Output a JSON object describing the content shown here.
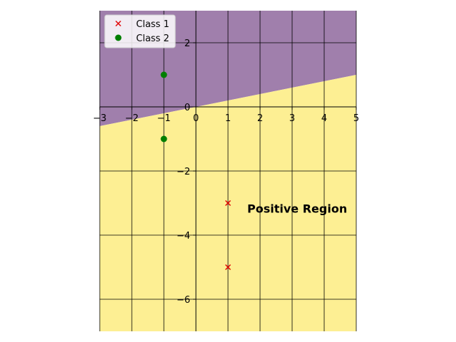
{
  "chart_data": {
    "type": "scatter",
    "title": "",
    "xlabel": "",
    "ylabel": "",
    "xlim": [
      -3,
      5
    ],
    "ylim": [
      -7,
      3
    ],
    "x_ticks": [
      -3,
      -2,
      -1,
      0,
      1,
      2,
      3,
      4,
      5
    ],
    "y_ticks": [
      -6,
      -4,
      -2,
      0,
      2
    ],
    "grid": true,
    "axes_through_origin": true,
    "decision_boundary": {
      "slope": 0.2,
      "intercept": 0
    },
    "regions": [
      {
        "side": "above",
        "color": "#a07fac"
      },
      {
        "side": "below",
        "color": "#fdef93"
      }
    ],
    "series": [
      {
        "name": "Class 1",
        "marker": "x",
        "color": "#e00000",
        "points": [
          {
            "x": 1,
            "y": -3
          },
          {
            "x": 1,
            "y": -5
          }
        ]
      },
      {
        "name": "Class 2",
        "marker": "circle",
        "color": "#007f00",
        "points": [
          {
            "x": -1,
            "y": 1
          },
          {
            "x": -1,
            "y": -1
          }
        ]
      }
    ],
    "legend_position": "top-left",
    "annotations": [
      {
        "text": "Positive Region",
        "x": 1.6,
        "y": -3.3
      }
    ]
  }
}
